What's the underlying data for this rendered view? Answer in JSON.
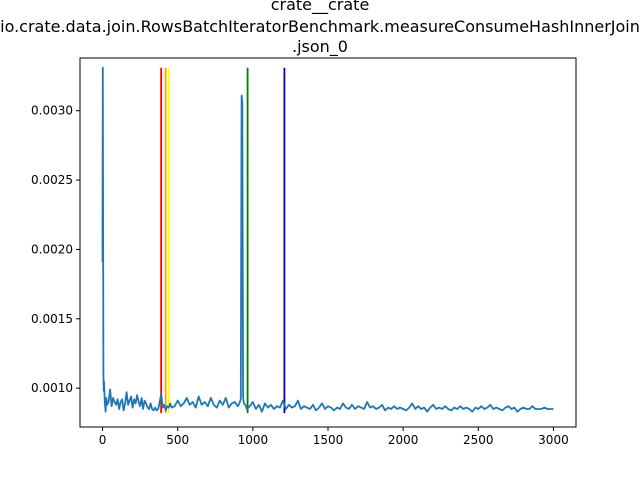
{
  "chart_data": {
    "type": "line",
    "title_lines": [
      "crate__crate",
      "io.crate.data.join.RowsBatchIteratorBenchmark.measureConsumeHashInnerJoin",
      ".json_0"
    ],
    "xlabel": "",
    "ylabel": "",
    "xlim": [
      -150,
      3150
    ],
    "ylim": [
      0.00072,
      0.00338
    ],
    "x_ticks": [
      0,
      500,
      1000,
      1500,
      2000,
      2500,
      3000
    ],
    "x_tick_labels": [
      "0",
      "500",
      "1000",
      "1500",
      "2000",
      "2500",
      "3000"
    ],
    "y_ticks": [
      0.001,
      0.0015,
      0.002,
      0.0025,
      0.003
    ],
    "y_tick_labels": [
      "0.0010",
      "0.0015",
      "0.0020",
      "0.0025",
      "0.0030"
    ],
    "grid": false,
    "series": [
      {
        "color": "#1f77b4",
        "x": [
          0,
          2,
          4,
          6,
          8,
          10,
          15,
          20,
          25,
          30,
          40,
          50,
          60,
          70,
          80,
          90,
          100,
          110,
          120,
          130,
          140,
          150,
          160,
          170,
          180,
          190,
          200,
          210,
          220,
          230,
          240,
          250,
          260,
          270,
          280,
          290,
          300,
          310,
          320,
          330,
          340,
          350,
          360,
          370,
          380,
          390,
          400,
          410,
          420,
          430,
          440,
          450,
          460,
          480,
          500,
          520,
          540,
          560,
          580,
          600,
          620,
          640,
          660,
          680,
          700,
          720,
          740,
          760,
          780,
          800,
          820,
          840,
          860,
          880,
          900,
          910,
          920,
          925,
          930,
          935,
          940,
          950,
          960,
          980,
          1000,
          1020,
          1040,
          1060,
          1080,
          1100,
          1120,
          1140,
          1160,
          1180,
          1200,
          1220,
          1240,
          1260,
          1280,
          1300,
          1320,
          1340,
          1360,
          1380,
          1400,
          1420,
          1440,
          1460,
          1480,
          1500,
          1520,
          1540,
          1560,
          1580,
          1600,
          1620,
          1640,
          1660,
          1680,
          1700,
          1720,
          1740,
          1760,
          1780,
          1800,
          1820,
          1840,
          1860,
          1880,
          1900,
          1920,
          1940,
          1960,
          1980,
          2000,
          2020,
          2040,
          2060,
          2080,
          2100,
          2120,
          2140,
          2160,
          2180,
          2200,
          2220,
          2240,
          2260,
          2280,
          2300,
          2320,
          2340,
          2360,
          2380,
          2400,
          2420,
          2440,
          2460,
          2480,
          2500,
          2520,
          2540,
          2560,
          2580,
          2600,
          2620,
          2640,
          2660,
          2680,
          2700,
          2720,
          2740,
          2760,
          2780,
          2800,
          2820,
          2840,
          2860,
          2880,
          2900,
          2920,
          2940,
          2960,
          2980,
          3000
        ],
        "y": [
          0.00191,
          0.00331,
          0.00224,
          0.00112,
          0.00098,
          0.00105,
          0.0009,
          0.00083,
          0.00093,
          0.00088,
          0.0009,
          0.00099,
          0.00087,
          0.00093,
          0.0009,
          0.00088,
          0.00092,
          0.00085,
          0.0009,
          0.00092,
          0.00084,
          0.00089,
          0.00097,
          0.00088,
          0.00091,
          0.00094,
          0.00086,
          0.00092,
          0.00089,
          0.00095,
          0.0009,
          0.00087,
          0.00093,
          0.00085,
          0.00091,
          0.00089,
          0.00086,
          0.00085,
          0.00089,
          0.00085,
          0.00084,
          0.00086,
          0.00084,
          0.00085,
          0.0009,
          0.00096,
          0.00086,
          0.00088,
          0.00084,
          0.00087,
          0.00086,
          0.00089,
          0.00086,
          0.00087,
          0.00091,
          0.00087,
          0.00089,
          0.00093,
          0.00088,
          0.0009,
          0.00086,
          0.00094,
          0.00088,
          0.0009,
          0.00087,
          0.00093,
          0.00088,
          0.00086,
          0.00091,
          0.00088,
          0.00093,
          0.00086,
          0.00089,
          0.0009,
          0.00087,
          0.00089,
          0.00092,
          0.00311,
          0.00306,
          0.00094,
          0.00089,
          0.00088,
          0.00085,
          0.00087,
          0.0009,
          0.00085,
          0.00088,
          0.00083,
          0.00089,
          0.00086,
          0.00088,
          0.00085,
          0.00087,
          0.00086,
          0.00091,
          0.00085,
          0.00088,
          0.00086,
          0.00087,
          0.00091,
          0.00085,
          0.00087,
          0.00086,
          0.00085,
          0.00088,
          0.00084,
          0.00086,
          0.00089,
          0.00085,
          0.00087,
          0.00086,
          0.00084,
          0.00086,
          0.00085,
          0.00089,
          0.00086,
          0.00085,
          0.00088,
          0.00085,
          0.00087,
          0.00086,
          0.00085,
          0.0009,
          0.00086,
          0.00087,
          0.00085,
          0.00086,
          0.00088,
          0.00084,
          0.00086,
          0.00085,
          0.00087,
          0.00085,
          0.00086,
          0.00085,
          0.00084,
          0.00086,
          0.00089,
          0.00085,
          0.00087,
          0.00085,
          0.00086,
          0.00083,
          0.00086,
          0.00088,
          0.00085,
          0.00086,
          0.00085,
          0.00087,
          0.00085,
          0.00084,
          0.00086,
          0.00085,
          0.00087,
          0.00085,
          0.00086,
          0.00085,
          0.00083,
          0.00086,
          0.00085,
          0.00087,
          0.00085,
          0.00086,
          0.00088,
          0.00085,
          0.00086,
          0.00085,
          0.00084,
          0.00086,
          0.00087,
          0.00085,
          0.00086,
          0.00083,
          0.00085,
          0.00086,
          0.00085,
          0.00085,
          0.00087,
          0.00085,
          0.00085,
          0.00085,
          0.00086,
          0.00085,
          0.00085,
          0.00085
        ]
      }
    ],
    "vertical_lines": [
      {
        "x": 390,
        "y_range": [
          0.00082,
          0.00331
        ],
        "color": "#ff0000"
      },
      {
        "x": 420,
        "y_range": [
          0.00082,
          0.00331
        ],
        "color": "#ffa500"
      },
      {
        "x": 440,
        "y_range": [
          0.00082,
          0.00331
        ],
        "color": "#ffff00"
      },
      {
        "x": 965,
        "y_range": [
          0.00082,
          0.00331
        ],
        "color": "#008000"
      },
      {
        "x": 1210,
        "y_range": [
          0.00082,
          0.00331
        ],
        "color": "#0000cc"
      }
    ]
  }
}
